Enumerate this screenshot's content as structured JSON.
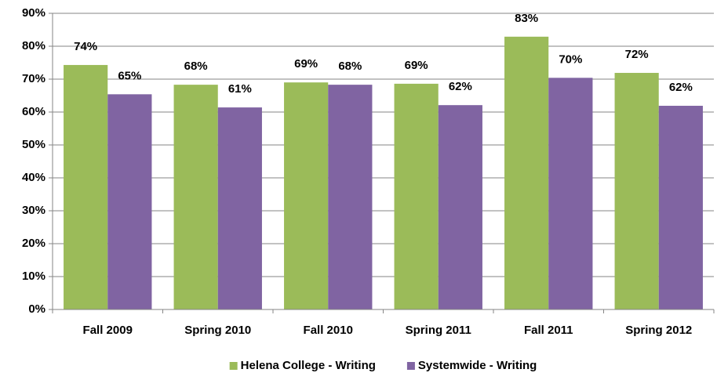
{
  "chart_data": {
    "type": "bar",
    "categories": [
      "Fall 2009",
      "Spring 2010",
      "Fall 2010",
      "Spring 2011",
      "Fall 2011",
      "Spring 2012"
    ],
    "series": [
      {
        "name": "Helena College - Writing",
        "color": "#9bbb59",
        "values": [
          74.3,
          68.3,
          69.0,
          68.6,
          82.9,
          71.9
        ],
        "value_labels": [
          "74%",
          "68%",
          "69%",
          "69%",
          "83%",
          "72%"
        ]
      },
      {
        "name": "Systemwide - Writing",
        "color": "#8064a2",
        "values": [
          65.4,
          61.4,
          68.3,
          62.1,
          70.4,
          61.9
        ],
        "value_labels": [
          "65%",
          "61%",
          "68%",
          "62%",
          "70%",
          "62%"
        ]
      }
    ],
    "ylim": [
      0,
      90
    ],
    "yticks": [
      {
        "value": 0,
        "label": "0%"
      },
      {
        "value": 10,
        "label": "10%"
      },
      {
        "value": 20,
        "label": "20%"
      },
      {
        "value": 30,
        "label": "30%"
      },
      {
        "value": 40,
        "label": "40%"
      },
      {
        "value": 50,
        "label": "50%"
      },
      {
        "value": 60,
        "label": "60%"
      },
      {
        "value": 70,
        "label": "70%"
      },
      {
        "value": 80,
        "label": "80%"
      },
      {
        "value": 90,
        "label": "90%"
      }
    ],
    "grid": true,
    "legend": "bottom"
  }
}
